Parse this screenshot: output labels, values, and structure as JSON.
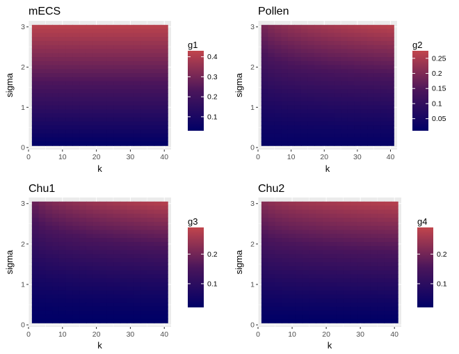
{
  "chart_data": [
    {
      "type": "heatmap",
      "title": "mECS",
      "xlabel": "k",
      "ylabel": "sigma",
      "x_ticks": [
        0,
        10,
        20,
        30,
        40
      ],
      "y_ticks": [
        0,
        1,
        2,
        3
      ],
      "xlim": [
        0,
        42
      ],
      "ylim": [
        -0.05,
        3.15
      ],
      "k_range": [
        1,
        41
      ],
      "sigma_range": [
        0.05,
        3.05
      ],
      "legend": {
        "title": "g1",
        "ticks": [
          0.1,
          0.2,
          0.3,
          0.4
        ],
        "range": [
          0.03,
          0.43
        ]
      },
      "fill": {
        "low": "#000066",
        "mid": "#4a155b",
        "high": "#c1454c"
      },
      "surface": {
        "g_min": 0.03,
        "g_max": 0.42,
        "sigma_exp": 1.0,
        "k_weight": 0.0
      }
    },
    {
      "type": "heatmap",
      "title": "Pollen",
      "xlabel": "k",
      "ylabel": "sigma",
      "x_ticks": [
        0,
        10,
        20,
        30,
        40
      ],
      "y_ticks": [
        0,
        1,
        2,
        3
      ],
      "xlim": [
        0,
        42
      ],
      "ylim": [
        -0.05,
        3.15
      ],
      "k_range": [
        1,
        41
      ],
      "sigma_range": [
        0.05,
        3.05
      ],
      "legend": {
        "title": "g2",
        "ticks": [
          0.05,
          0.1,
          0.15,
          0.2,
          0.25
        ],
        "range": [
          0.01,
          0.275
        ]
      },
      "fill": {
        "low": "#000066",
        "mid": "#4a155b",
        "high": "#c1454c"
      },
      "surface": {
        "g_min": 0.02,
        "g_max": 0.27,
        "sigma_exp": 1.3,
        "k_weight": 0.35
      }
    },
    {
      "type": "heatmap",
      "title": "Chu1",
      "xlabel": "k",
      "ylabel": "sigma",
      "x_ticks": [
        0,
        10,
        20,
        30,
        40
      ],
      "y_ticks": [
        0,
        1,
        2,
        3
      ],
      "xlim": [
        0,
        42
      ],
      "ylim": [
        -0.05,
        3.15
      ],
      "k_range": [
        1,
        41
      ],
      "sigma_range": [
        0.05,
        3.05
      ],
      "legend": {
        "title": "g3",
        "ticks": [
          0.1,
          0.2
        ],
        "range": [
          0.02,
          0.29
        ]
      },
      "fill": {
        "low": "#000066",
        "mid": "#4a155b",
        "high": "#c1454c"
      },
      "surface": {
        "g_min": 0.02,
        "g_max": 0.28,
        "sigma_exp": 1.4,
        "k_weight": 0.4
      }
    },
    {
      "type": "heatmap",
      "title": "Chu2",
      "xlabel": "k",
      "ylabel": "sigma",
      "x_ticks": [
        0,
        10,
        20,
        30,
        40
      ],
      "y_ticks": [
        0,
        1,
        2,
        3
      ],
      "xlim": [
        0,
        42
      ],
      "ylim": [
        -0.05,
        3.15
      ],
      "k_range": [
        1,
        41
      ],
      "sigma_range": [
        0.05,
        3.05
      ],
      "legend": {
        "title": "g4",
        "ticks": [
          0.1,
          0.2
        ],
        "range": [
          0.02,
          0.29
        ]
      },
      "fill": {
        "low": "#000066",
        "mid": "#4a155b",
        "high": "#c1454c"
      },
      "surface": {
        "g_min": 0.02,
        "g_max": 0.28,
        "sigma_exp": 1.2,
        "k_weight": 0.25
      }
    }
  ]
}
